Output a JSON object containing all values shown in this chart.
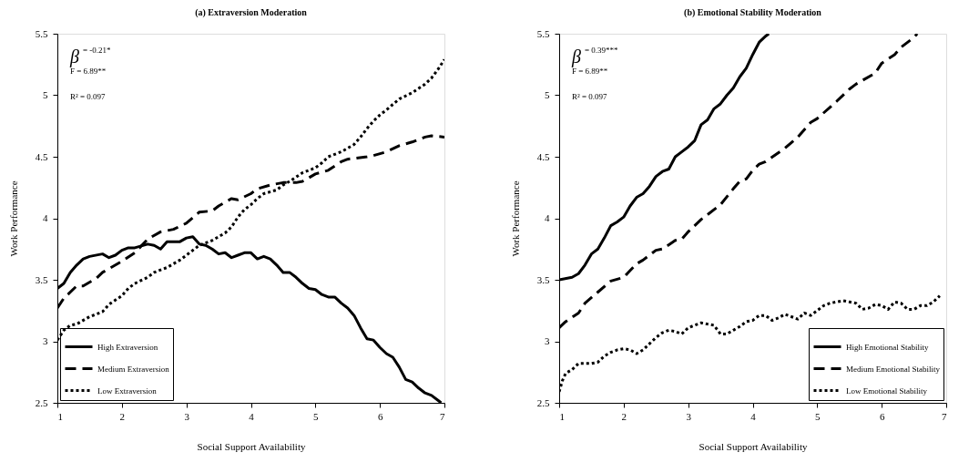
{
  "chart_data": [
    {
      "type": "line",
      "title": "(a) Extraversion Moderation",
      "xlabel": "Social Support Availability",
      "ylabel": "Work Performance",
      "xlim": [
        1,
        7
      ],
      "ylim": [
        2.5,
        5.5
      ],
      "xticks": [
        1,
        2,
        3,
        4,
        5,
        6,
        7
      ],
      "yticks": [
        2.5,
        3,
        3.5,
        4,
        4.5,
        5,
        5.5
      ],
      "grid": false,
      "legend": "bottom left",
      "annotations": [
        "β$^{= -0.21*}$",
        "F = 6.89**",
        "R² = 0.097"
      ],
      "series": [
        {
          "name": "High Extraversion",
          "color": "#000000",
          "line_style": "solid",
          "x": [
            1,
            1.1,
            1.2,
            1.3,
            1.4,
            1.5,
            1.7,
            1.8,
            1.9,
            2.0,
            2.1,
            2.2,
            2.4,
            2.5,
            2.6,
            2.7,
            2.9,
            3.0,
            3.1,
            3.2,
            3.3,
            3.4,
            3.5,
            3.6,
            3.7,
            3.8,
            3.9,
            4.0,
            4.1,
            4.2,
            4.3,
            4.4,
            4.5,
            4.6,
            4.7,
            4.8,
            4.9,
            5.0,
            5.1,
            5.2,
            5.3,
            5.4,
            5.5,
            5.6,
            5.7,
            5.8,
            5.9,
            6.0,
            6.1,
            6.2,
            6.3,
            6.4,
            6.5,
            6.6,
            6.7,
            6.8,
            6.9,
            6.95
          ],
          "values": [
            3.43,
            3.47,
            3.56,
            3.62,
            3.67,
            3.69,
            3.71,
            3.68,
            3.7,
            3.74,
            3.76,
            3.76,
            3.79,
            3.78,
            3.75,
            3.81,
            3.81,
            3.84,
            3.85,
            3.79,
            3.78,
            3.75,
            3.71,
            3.72,
            3.68,
            3.7,
            3.72,
            3.72,
            3.67,
            3.69,
            3.67,
            3.62,
            3.56,
            3.56,
            3.52,
            3.47,
            3.43,
            3.42,
            3.38,
            3.36,
            3.36,
            3.31,
            3.27,
            3.21,
            3.11,
            3.02,
            3.01,
            2.95,
            2.9,
            2.87,
            2.79,
            2.69,
            2.67,
            2.62,
            2.58,
            2.56,
            2.52,
            2.5
          ]
        },
        {
          "name": "Medium Extraversion",
          "color": "#000000",
          "line_style": "dashed",
          "x": [
            1,
            1.1,
            1.3,
            1.4,
            1.6,
            1.7,
            1.9,
            2.0,
            2.2,
            2.4,
            2.6,
            2.8,
            3.0,
            3.2,
            3.4,
            3.5,
            3.7,
            3.8,
            4.0,
            4.1,
            4.3,
            4.5,
            4.7,
            4.8,
            5.0,
            5.2,
            5.4,
            5.5,
            5.8,
            5.9,
            6.1,
            6.3,
            6.5,
            6.7,
            6.8,
            7
          ],
          "values": [
            3.27,
            3.35,
            3.45,
            3.45,
            3.51,
            3.56,
            3.62,
            3.65,
            3.72,
            3.83,
            3.89,
            3.91,
            3.96,
            4.05,
            4.06,
            4.1,
            4.16,
            4.15,
            4.2,
            4.24,
            4.27,
            4.29,
            4.29,
            4.3,
            4.36,
            4.39,
            4.46,
            4.48,
            4.5,
            4.51,
            4.54,
            4.59,
            4.62,
            4.66,
            4.67,
            4.66
          ]
        },
        {
          "name": "Low Extraversion",
          "color": "#000000",
          "line_style": "dotted",
          "x": [
            1,
            1.1,
            1.2,
            1.3,
            1.5,
            1.6,
            1.7,
            1.8,
            2.0,
            2.1,
            2.2,
            2.4,
            2.5,
            2.7,
            2.9,
            3.0,
            3.1,
            3.2,
            3.4,
            3.6,
            3.7,
            3.8,
            3.9,
            4.0,
            4.1,
            4.2,
            4.4,
            4.5,
            4.6,
            4.8,
            5.0,
            5.1,
            5.2,
            5.4,
            5.5,
            5.6,
            5.7,
            5.8,
            5.9,
            6.0,
            6.1,
            6.3,
            6.5,
            6.7,
            6.8,
            6.9,
            7
          ],
          "values": [
            3.01,
            3.09,
            3.13,
            3.14,
            3.2,
            3.22,
            3.24,
            3.3,
            3.37,
            3.43,
            3.47,
            3.52,
            3.56,
            3.6,
            3.66,
            3.7,
            3.74,
            3.78,
            3.82,
            3.88,
            3.93,
            4.01,
            4.07,
            4.11,
            4.16,
            4.2,
            4.23,
            4.27,
            4.3,
            4.37,
            4.41,
            4.45,
            4.5,
            4.54,
            4.57,
            4.6,
            4.66,
            4.73,
            4.79,
            4.84,
            4.88,
            4.97,
            5.02,
            5.09,
            5.14,
            5.21,
            5.29
          ]
        }
      ]
    },
    {
      "type": "line",
      "title": "(b) Emotional Stability Moderation",
      "xlabel": "Social Support Availability",
      "ylabel": "Work Performance",
      "xlim": [
        1,
        7
      ],
      "ylim": [
        2.5,
        5.5
      ],
      "xticks": [
        1,
        2,
        3,
        4,
        5,
        6,
        7
      ],
      "yticks": [
        2.5,
        3,
        3.5,
        4,
        4.5,
        5,
        5.5
      ],
      "grid": false,
      "legend": "bottom right",
      "annotations": [
        "β$^{= 0.39***}$",
        "F = 6.89**",
        "R² = 0.097"
      ],
      "series": [
        {
          "name": "High Emotional Stability",
          "color": "#000000",
          "line_style": "solid",
          "x": [
            1,
            1.2,
            1.3,
            1.4,
            1.5,
            1.6,
            1.7,
            1.8,
            1.9,
            2.0,
            2.1,
            2.2,
            2.3,
            2.4,
            2.5,
            2.6,
            2.7,
            2.8,
            2.9,
            3.0,
            3.1,
            3.2,
            3.3,
            3.4,
            3.5,
            3.6,
            3.7,
            3.8,
            3.9,
            4.0,
            4.1,
            4.2,
            4.25
          ],
          "values": [
            3.5,
            3.52,
            3.55,
            3.62,
            3.71,
            3.75,
            3.84,
            3.94,
            3.97,
            4.01,
            4.1,
            4.17,
            4.2,
            4.26,
            4.34,
            4.38,
            4.4,
            4.5,
            4.54,
            4.58,
            4.63,
            4.76,
            4.8,
            4.89,
            4.93,
            5.0,
            5.06,
            5.15,
            5.22,
            5.33,
            5.43,
            5.48,
            5.5
          ]
        },
        {
          "name": "Medium Emotional Stability",
          "color": "#000000",
          "line_style": "dashed",
          "x": [
            1,
            1.1,
            1.3,
            1.4,
            1.6,
            1.8,
            2.0,
            2.2,
            2.3,
            2.5,
            2.6,
            2.8,
            2.9,
            3.0,
            3.2,
            3.5,
            3.7,
            3.8,
            3.9,
            4.0,
            4.1,
            4.2,
            4.5,
            4.7,
            4.9,
            5.0,
            5.3,
            5.5,
            5.6,
            5.9,
            6.0,
            6.2,
            6.3,
            6.5,
            6.55
          ],
          "values": [
            3.11,
            3.16,
            3.23,
            3.31,
            3.4,
            3.49,
            3.52,
            3.63,
            3.66,
            3.74,
            3.75,
            3.82,
            3.83,
            3.89,
            3.99,
            4.11,
            4.24,
            4.3,
            4.32,
            4.39,
            4.44,
            4.46,
            4.57,
            4.66,
            4.78,
            4.81,
            4.95,
            5.05,
            5.09,
            5.18,
            5.26,
            5.33,
            5.39,
            5.47,
            5.5
          ]
        },
        {
          "name": "Low Emotional Stability",
          "color": "#000000",
          "line_style": "dotted",
          "x": [
            1,
            1.05,
            1.1,
            1.2,
            1.3,
            1.4,
            1.5,
            1.6,
            1.7,
            1.8,
            1.9,
            2.0,
            2.1,
            2.2,
            2.3,
            2.4,
            2.5,
            2.6,
            2.7,
            2.8,
            2.9,
            3.0,
            3.1,
            3.2,
            3.3,
            3.4,
            3.5,
            3.6,
            3.7,
            3.8,
            3.9,
            4.0,
            4.1,
            4.2,
            4.3,
            4.4,
            4.5,
            4.6,
            4.7,
            4.8,
            4.9,
            5.0,
            5.1,
            5.2,
            5.3,
            5.4,
            5.5,
            5.6,
            5.7,
            5.8,
            5.9,
            6.0,
            6.1,
            6.2,
            6.3,
            6.4,
            6.5,
            6.6,
            6.7,
            6.8,
            6.9
          ],
          "values": [
            2.59,
            2.68,
            2.74,
            2.77,
            2.82,
            2.82,
            2.82,
            2.83,
            2.88,
            2.91,
            2.93,
            2.94,
            2.93,
            2.9,
            2.93,
            2.98,
            3.03,
            3.07,
            3.09,
            3.08,
            3.06,
            3.11,
            3.13,
            3.15,
            3.14,
            3.13,
            3.06,
            3.06,
            3.09,
            3.12,
            3.16,
            3.17,
            3.21,
            3.21,
            3.17,
            3.19,
            3.22,
            3.2,
            3.18,
            3.23,
            3.21,
            3.25,
            3.29,
            3.31,
            3.32,
            3.33,
            3.32,
            3.31,
            3.26,
            3.27,
            3.3,
            3.29,
            3.26,
            3.32,
            3.31,
            3.26,
            3.26,
            3.29,
            3.29,
            3.32,
            3.37
          ]
        }
      ]
    }
  ]
}
